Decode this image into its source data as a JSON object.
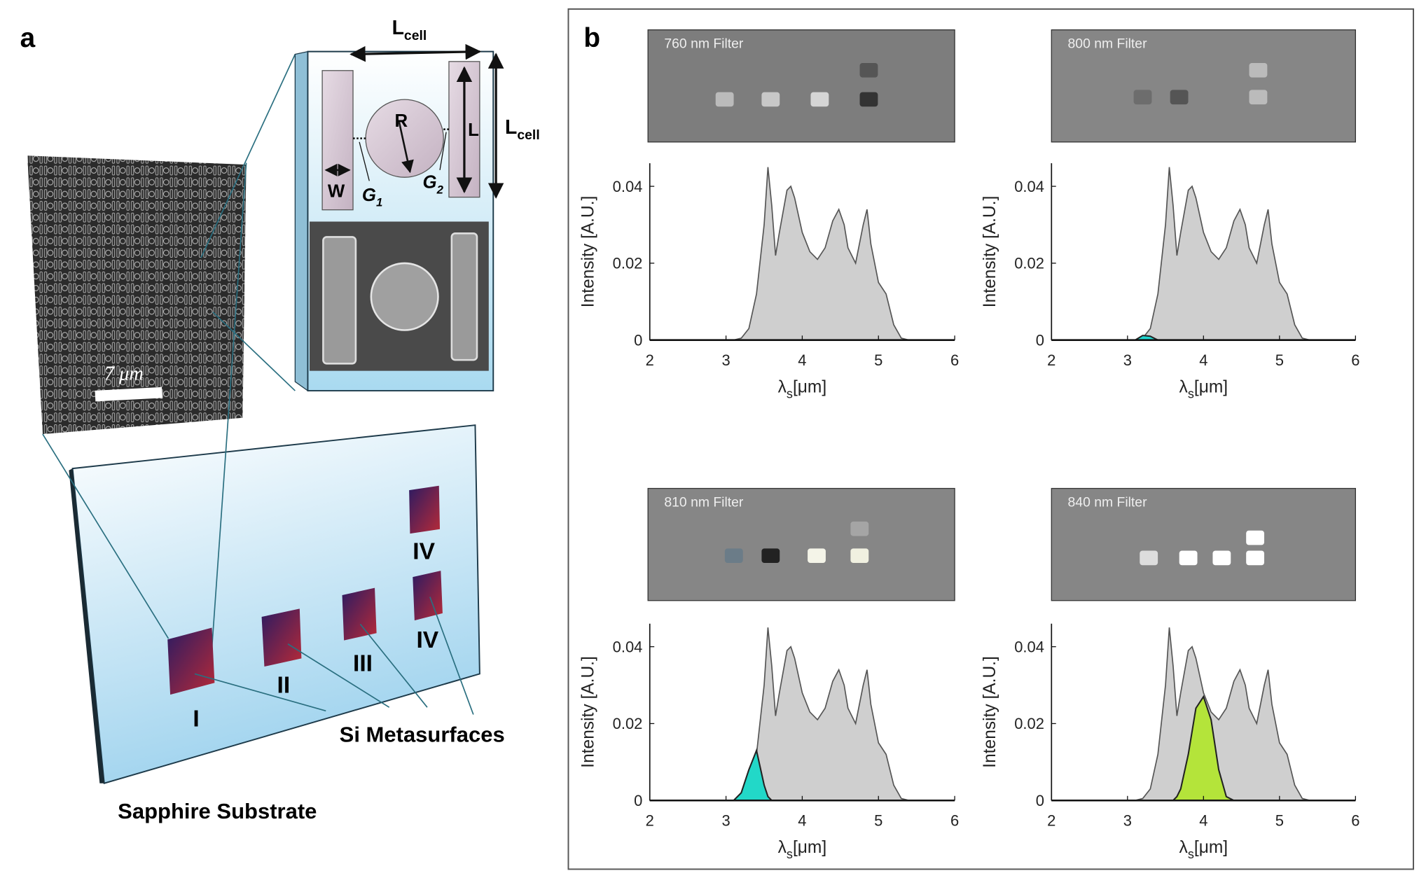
{
  "panel_a": {
    "label": "a",
    "cell": {
      "lcell_top": {
        "main": "L",
        "sub": "cell"
      },
      "lcell_side": {
        "main": "L",
        "sub": "cell"
      },
      "radius": "R",
      "length": "L",
      "width": "W",
      "gap1": {
        "main": "G",
        "sub": "1"
      },
      "gap2": {
        "main": "G",
        "sub": "2"
      }
    },
    "scale_bar": "7 μm",
    "substrate_labels": [
      "I",
      "II",
      "III",
      "IV",
      "IV"
    ],
    "metasurfaces": "Si Metasurfaces",
    "substrate": "Sapphire Substrate"
  },
  "panel_b": {
    "label": "b"
  },
  "chart_data": [
    {
      "type": "area",
      "title": "760 nm Filter",
      "xlabel": {
        "symbol": "λ",
        "sub": "s",
        "unit": "[μm]"
      },
      "ylabel": "Intensity [A.U.]",
      "x": [
        2,
        2.5,
        3,
        3.1,
        3.2,
        3.3,
        3.4,
        3.5,
        3.55,
        3.6,
        3.65,
        3.7,
        3.8,
        3.85,
        3.9,
        4.0,
        4.1,
        4.2,
        4.3,
        4.4,
        4.48,
        4.55,
        4.6,
        4.7,
        4.8,
        4.85,
        4.9,
        5.0,
        5.1,
        5.2,
        5.3,
        5.4,
        6
      ],
      "series": [
        {
          "color": "#cfcfcf",
          "values": [
            0,
            0,
            0,
            0,
            0.0005,
            0.003,
            0.012,
            0.03,
            0.045,
            0.035,
            0.022,
            0.028,
            0.039,
            0.04,
            0.037,
            0.028,
            0.023,
            0.021,
            0.024,
            0.031,
            0.034,
            0.03,
            0.024,
            0.02,
            0.03,
            0.034,
            0.025,
            0.015,
            0.012,
            0.004,
            0.0005,
            0,
            0
          ]
        }
      ],
      "xlim": [
        2,
        6
      ],
      "ylim": [
        0,
        0.046
      ],
      "xticks": [
        2,
        3,
        4,
        5,
        6
      ],
      "yticks": [
        0,
        0.02,
        0.04
      ]
    },
    {
      "type": "area",
      "title": "800 nm Filter",
      "xlabel": {
        "symbol": "λ",
        "sub": "s",
        "unit": "[μm]"
      },
      "ylabel": "Intensity [A.U.]",
      "x": [
        2,
        2.5,
        3,
        3.1,
        3.2,
        3.3,
        3.4,
        3.5,
        3.55,
        3.6,
        3.65,
        3.7,
        3.8,
        3.85,
        3.9,
        4.0,
        4.1,
        4.2,
        4.3,
        4.4,
        4.48,
        4.55,
        4.6,
        4.7,
        4.8,
        4.85,
        4.9,
        5.0,
        5.1,
        5.2,
        5.3,
        5.4,
        6
      ],
      "series": [
        {
          "color": "#cfcfcf",
          "values": [
            0,
            0,
            0,
            0,
            0.0005,
            0.003,
            0.012,
            0.03,
            0.045,
            0.035,
            0.022,
            0.028,
            0.039,
            0.04,
            0.037,
            0.028,
            0.023,
            0.021,
            0.024,
            0.031,
            0.034,
            0.03,
            0.024,
            0.02,
            0.03,
            0.034,
            0.025,
            0.015,
            0.012,
            0.004,
            0.0005,
            0,
            0
          ]
        },
        {
          "color": "#1fd6d0",
          "values": [
            0,
            0,
            0,
            0,
            0.0012,
            0.001,
            0,
            0,
            0,
            0,
            0,
            0,
            0,
            0,
            0,
            0,
            0,
            0,
            0,
            0,
            0,
            0,
            0,
            0,
            0,
            0,
            0,
            0,
            0,
            0,
            0,
            0,
            0
          ]
        }
      ],
      "xlim": [
        2,
        6
      ],
      "ylim": [
        0,
        0.046
      ],
      "xticks": [
        2,
        3,
        4,
        5,
        6
      ],
      "yticks": [
        0,
        0.02,
        0.04
      ]
    },
    {
      "type": "area",
      "title": "810 nm Filter",
      "xlabel": {
        "symbol": "λ",
        "sub": "s",
        "unit": "[μm]"
      },
      "ylabel": "Intensity [A.U.]",
      "x": [
        2,
        2.5,
        3,
        3.1,
        3.2,
        3.3,
        3.4,
        3.5,
        3.55,
        3.6,
        3.65,
        3.7,
        3.8,
        3.85,
        3.9,
        4.0,
        4.1,
        4.2,
        4.3,
        4.4,
        4.48,
        4.55,
        4.6,
        4.7,
        4.8,
        4.85,
        4.9,
        5.0,
        5.1,
        5.2,
        5.3,
        5.4,
        6
      ],
      "series": [
        {
          "color": "#cfcfcf",
          "values": [
            0,
            0,
            0,
            0,
            0.0005,
            0.003,
            0.012,
            0.03,
            0.045,
            0.035,
            0.022,
            0.028,
            0.039,
            0.04,
            0.037,
            0.028,
            0.023,
            0.021,
            0.024,
            0.031,
            0.034,
            0.03,
            0.024,
            0.02,
            0.03,
            0.034,
            0.025,
            0.015,
            0.012,
            0.004,
            0.0005,
            0,
            0
          ]
        },
        {
          "color": "#22d8c8",
          "values": [
            0,
            0,
            0,
            0,
            0.002,
            0.008,
            0.013,
            0.004,
            0.001,
            0,
            0,
            0,
            0,
            0,
            0,
            0,
            0,
            0,
            0,
            0,
            0,
            0,
            0,
            0,
            0,
            0,
            0,
            0,
            0,
            0,
            0,
            0,
            0
          ]
        }
      ],
      "xlim": [
        2,
        6
      ],
      "ylim": [
        0,
        0.046
      ],
      "xticks": [
        2,
        3,
        4,
        5,
        6
      ],
      "yticks": [
        0,
        0.02,
        0.04
      ]
    },
    {
      "type": "area",
      "title": "840 nm Filter",
      "xlabel": {
        "symbol": "λ",
        "sub": "s",
        "unit": "[μm]"
      },
      "ylabel": "Intensity [A.U.]",
      "x": [
        2,
        2.5,
        3,
        3.1,
        3.2,
        3.3,
        3.4,
        3.5,
        3.55,
        3.6,
        3.65,
        3.7,
        3.8,
        3.85,
        3.9,
        4.0,
        4.1,
        4.2,
        4.3,
        4.4,
        4.48,
        4.55,
        4.6,
        4.7,
        4.8,
        4.85,
        4.9,
        5.0,
        5.1,
        5.2,
        5.3,
        5.4,
        6
      ],
      "series": [
        {
          "color": "#cfcfcf",
          "values": [
            0,
            0,
            0,
            0,
            0.0005,
            0.003,
            0.012,
            0.03,
            0.045,
            0.035,
            0.022,
            0.028,
            0.039,
            0.04,
            0.037,
            0.028,
            0.023,
            0.021,
            0.024,
            0.031,
            0.034,
            0.03,
            0.024,
            0.02,
            0.03,
            0.034,
            0.025,
            0.015,
            0.012,
            0.004,
            0.0005,
            0,
            0
          ]
        },
        {
          "color": "#b4e43a",
          "values": [
            0,
            0,
            0,
            0,
            0,
            0,
            0,
            0,
            0,
            0,
            0.001,
            0.003,
            0.012,
            0.018,
            0.024,
            0.027,
            0.021,
            0.008,
            0.001,
            0,
            0,
            0,
            0,
            0,
            0,
            0,
            0,
            0,
            0,
            0,
            0,
            0,
            0
          ]
        }
      ],
      "xlim": [
        2,
        6
      ],
      "ylim": [
        0,
        0.046
      ],
      "xticks": [
        2,
        3,
        4,
        5,
        6
      ],
      "yticks": [
        0,
        0.02,
        0.04
      ]
    }
  ]
}
